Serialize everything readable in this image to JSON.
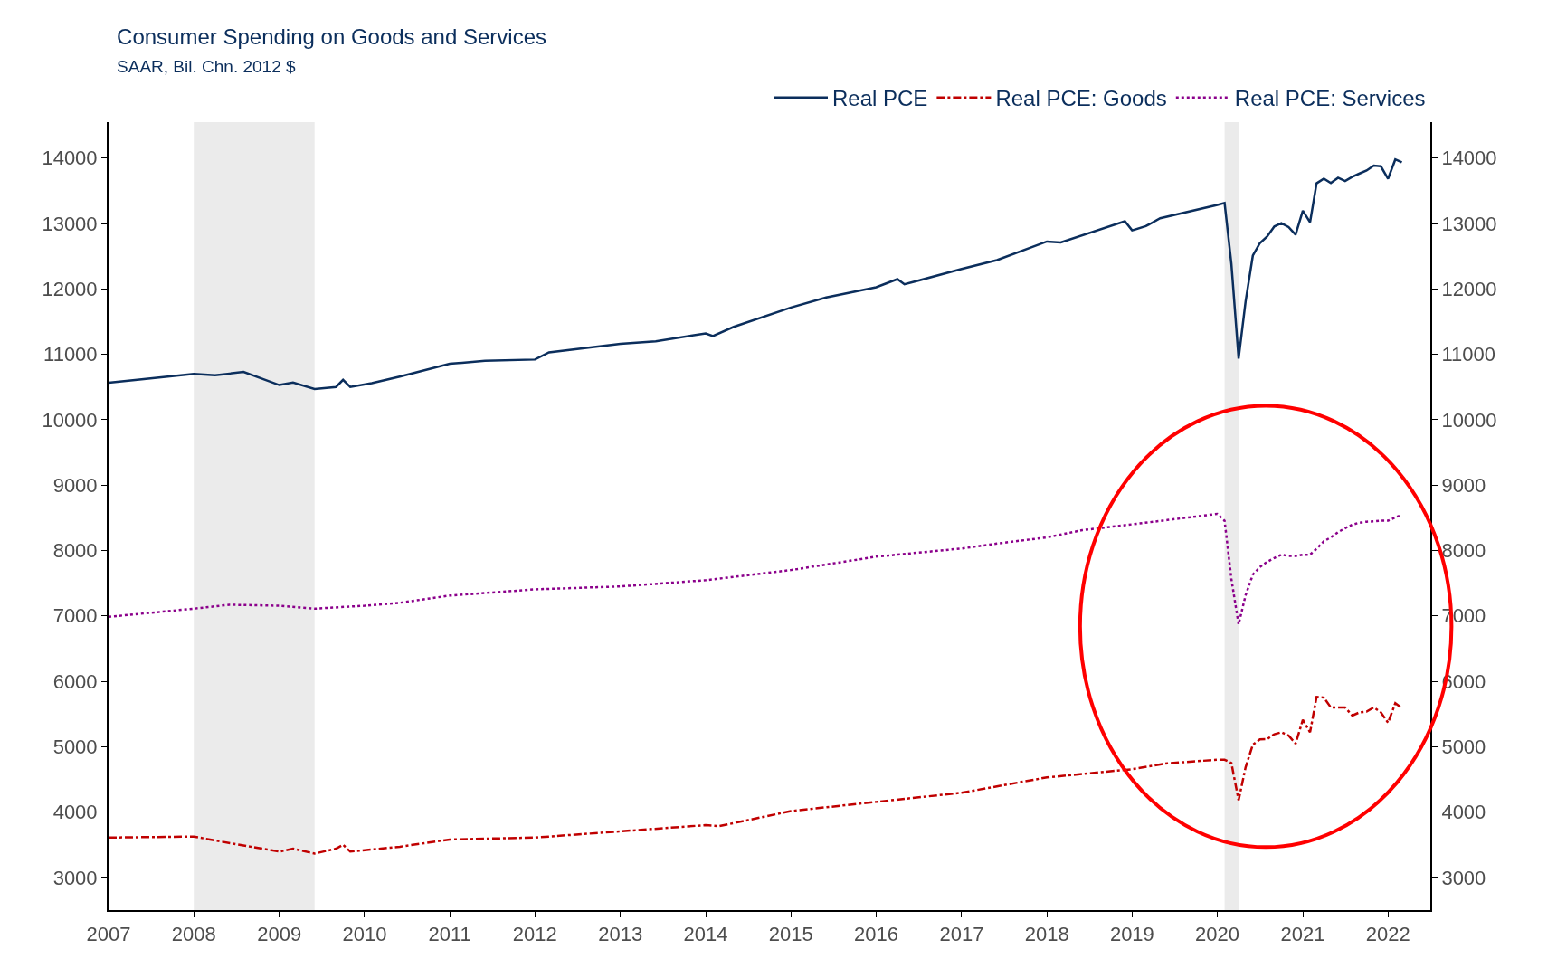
{
  "chart_data": {
    "type": "line",
    "title": "Consumer Spending on Goods and Services",
    "subtitle": "SAAR, Bil. Chn. 2012 $",
    "xlim": [
      "2007-01-01",
      "2022-07-01"
    ],
    "xticks": [
      "2007",
      "2008",
      "2009",
      "2010",
      "2011",
      "2012",
      "2013",
      "2014",
      "2015",
      "2016",
      "2017",
      "2018",
      "2019",
      "2020",
      "2021",
      "2022"
    ],
    "ylim": [
      2500,
      14550
    ],
    "yticks": [
      3000,
      4000,
      5000,
      6000,
      7000,
      8000,
      9000,
      10000,
      11000,
      12000,
      13000,
      14000
    ],
    "y2lim": [
      2500,
      14550
    ],
    "y2ticks": [
      3000,
      4000,
      5000,
      6000,
      7000,
      8000,
      9000,
      10000,
      11000,
      12000,
      13000,
      14000
    ],
    "grid": false,
    "legend": "top right",
    "bands": [
      {
        "axis": "x",
        "from": "2008-01",
        "to": "2009-06",
        "color": "#ebebeb"
      },
      {
        "axis": "x",
        "from": "2020-02",
        "to": "2020-04",
        "color": "#ebebeb"
      }
    ],
    "series": [
      {
        "name": "Real PCE",
        "color": "#0b2e5c",
        "line_style": "solid",
        "x": [
          "2007-01",
          "2007-06",
          "2008-01",
          "2008-04",
          "2008-08",
          "2009-01",
          "2009-03",
          "2009-06",
          "2009-09",
          "2009-10",
          "2009-11",
          "2010-02",
          "2010-06",
          "2011-01",
          "2011-06",
          "2012-01",
          "2012-03",
          "2013-01",
          "2013-06",
          "2014-01",
          "2014-02",
          "2014-05",
          "2015-01",
          "2015-06",
          "2016-01",
          "2016-04",
          "2016-05",
          "2017-01",
          "2017-06",
          "2018-01",
          "2018-03",
          "2018-12",
          "2019-01",
          "2019-03",
          "2019-05",
          "2020-01",
          "2020-02",
          "2020-03",
          "2020-04",
          "2020-05",
          "2020-06",
          "2020-07",
          "2020-08",
          "2020-09",
          "2020-10",
          "2020-11",
          "2020-12",
          "2021-01",
          "2021-02",
          "2021-03",
          "2021-04",
          "2021-05",
          "2021-06",
          "2021-07",
          "2021-08",
          "2021-09",
          "2021-10",
          "2021-11",
          "2021-12",
          "2022-01",
          "2022-02",
          "2022-03"
        ],
        "values": [
          10565,
          10620,
          10700,
          10680,
          10730,
          10530,
          10570,
          10470,
          10500,
          10610,
          10500,
          10560,
          10660,
          10855,
          10900,
          10920,
          11030,
          11160,
          11200,
          11320,
          11280,
          11420,
          11715,
          11870,
          12025,
          12150,
          12070,
          12305,
          12440,
          12725,
          12710,
          13035,
          12895,
          12960,
          13080,
          13285,
          13315,
          12385,
          10935,
          11810,
          12510,
          12700,
          12800,
          12955,
          13005,
          12945,
          12830,
          13195,
          13020,
          13615,
          13685,
          13620,
          13700,
          13650,
          13715,
          13765,
          13810,
          13885,
          13875,
          13685,
          13980,
          13935
        ]
      },
      {
        "name": "Real PCE: Goods",
        "color": "#c00000",
        "line_style": "dashed",
        "x": [
          "2007-01",
          "2008-01",
          "2008-04",
          "2008-09",
          "2009-01",
          "2009-03",
          "2009-06",
          "2009-09",
          "2009-10",
          "2009-11",
          "2010-06",
          "2011-01",
          "2012-01",
          "2013-01",
          "2014-01",
          "2014-03",
          "2015-01",
          "2016-01",
          "2017-01",
          "2018-01",
          "2019-01",
          "2019-06",
          "2020-01",
          "2020-02",
          "2020-03",
          "2020-04",
          "2020-05",
          "2020-06",
          "2020-07",
          "2020-08",
          "2020-09",
          "2020-10",
          "2020-11",
          "2020-12",
          "2021-01",
          "2021-02",
          "2021-03",
          "2021-04",
          "2021-05",
          "2021-06",
          "2021-07",
          "2021-08",
          "2021-09",
          "2021-10",
          "2021-11",
          "2021-12",
          "2022-01",
          "2022-02",
          "2022-03"
        ],
        "values": [
          3610,
          3625,
          3565,
          3470,
          3395,
          3440,
          3365,
          3440,
          3500,
          3395,
          3470,
          3580,
          3610,
          3705,
          3800,
          3785,
          4015,
          4155,
          4295,
          4530,
          4655,
          4745,
          4800,
          4800,
          4750,
          4180,
          4685,
          5030,
          5110,
          5115,
          5190,
          5220,
          5170,
          5045,
          5410,
          5220,
          5760,
          5750,
          5600,
          5600,
          5600,
          5475,
          5525,
          5535,
          5600,
          5525,
          5365,
          5665,
          5590
        ]
      },
      {
        "name": "Real PCE: Services",
        "color": "#8b008b",
        "line_style": "dotted",
        "x": [
          "2007-01",
          "2008-01",
          "2008-06",
          "2009-01",
          "2009-06",
          "2010-01",
          "2010-06",
          "2011-01",
          "2012-01",
          "2013-01",
          "2014-01",
          "2015-01",
          "2016-01",
          "2017-01",
          "2017-06",
          "2018-01",
          "2018-06",
          "2019-01",
          "2019-06",
          "2020-01",
          "2020-02",
          "2020-03",
          "2020-04",
          "2020-05",
          "2020-06",
          "2020-07",
          "2020-08",
          "2020-09",
          "2020-10",
          "2020-11",
          "2020-12",
          "2021-01",
          "2021-02",
          "2021-03",
          "2021-04",
          "2021-05",
          "2021-06",
          "2021-07",
          "2021-08",
          "2021-09",
          "2021-10",
          "2021-11",
          "2021-12",
          "2022-01",
          "2022-02",
          "2022-03"
        ],
        "values": [
          6985,
          7110,
          7170,
          7155,
          7110,
          7155,
          7200,
          7310,
          7405,
          7450,
          7545,
          7700,
          7905,
          8030,
          8105,
          8200,
          8310,
          8400,
          8465,
          8560,
          8455,
          7565,
          6870,
          7315,
          7630,
          7745,
          7825,
          7885,
          7935,
          7915,
          7915,
          7935,
          7935,
          8025,
          8140,
          8200,
          8280,
          8340,
          8395,
          8425,
          8440,
          8445,
          8455,
          8455,
          8505,
          8545
        ]
      }
    ]
  }
}
